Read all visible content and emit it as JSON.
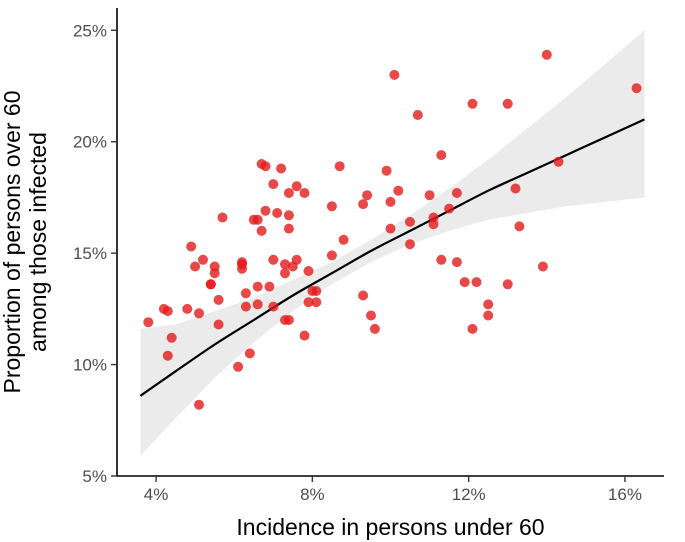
{
  "chart_data": {
    "type": "scatter",
    "title": "",
    "xlabel": "Incidence in persons under 60",
    "ylabel_lines": [
      "Proportion of persons over 60",
      "among those infected"
    ],
    "xlim": [
      3.0,
      17.0
    ],
    "ylim": [
      5.0,
      26.0
    ],
    "x_ticks": [
      4,
      8,
      12,
      16
    ],
    "x_tick_labels": [
      "4%",
      "8%",
      "12%",
      "16%"
    ],
    "y_ticks": [
      5,
      10,
      15,
      20,
      25
    ],
    "y_tick_labels": [
      "5%",
      "10%",
      "15%",
      "20%",
      "25%"
    ],
    "grid": false,
    "colors": {
      "points": "#e41a1c",
      "fit_line": "#000000",
      "confidence_band": "#ebebeb"
    },
    "series": [
      {
        "name": "observations",
        "points": [
          [
            3.8,
            11.9
          ],
          [
            4.2,
            12.5
          ],
          [
            4.3,
            12.4
          ],
          [
            4.3,
            10.4
          ],
          [
            4.4,
            11.2
          ],
          [
            4.8,
            12.5
          ],
          [
            4.9,
            15.3
          ],
          [
            5.0,
            14.4
          ],
          [
            5.1,
            12.3
          ],
          [
            5.1,
            8.2
          ],
          [
            5.2,
            14.7
          ],
          [
            5.4,
            13.6
          ],
          [
            5.4,
            13.6
          ],
          [
            5.5,
            14.1
          ],
          [
            5.5,
            14.4
          ],
          [
            5.6,
            11.8
          ],
          [
            5.6,
            12.9
          ],
          [
            5.7,
            16.6
          ],
          [
            6.1,
            9.9
          ],
          [
            6.2,
            14.6
          ],
          [
            6.2,
            14.5
          ],
          [
            6.2,
            14.3
          ],
          [
            6.3,
            12.6
          ],
          [
            6.3,
            13.2
          ],
          [
            6.4,
            10.5
          ],
          [
            6.5,
            16.5
          ],
          [
            6.6,
            13.5
          ],
          [
            6.6,
            16.5
          ],
          [
            6.6,
            12.7
          ],
          [
            6.7,
            16.0
          ],
          [
            6.7,
            19.0
          ],
          [
            6.8,
            18.9
          ],
          [
            6.8,
            16.9
          ],
          [
            6.9,
            13.5
          ],
          [
            7.0,
            14.7
          ],
          [
            7.0,
            18.1
          ],
          [
            7.0,
            12.6
          ],
          [
            7.1,
            16.8
          ],
          [
            7.2,
            18.8
          ],
          [
            7.3,
            14.1
          ],
          [
            7.3,
            14.5
          ],
          [
            7.3,
            12.0
          ],
          [
            7.4,
            16.7
          ],
          [
            7.4,
            16.1
          ],
          [
            7.4,
            17.7
          ],
          [
            7.4,
            12.0
          ],
          [
            7.5,
            14.4
          ],
          [
            7.6,
            14.7
          ],
          [
            7.6,
            18.0
          ],
          [
            7.8,
            17.7
          ],
          [
            7.8,
            11.3
          ],
          [
            7.9,
            12.8
          ],
          [
            7.9,
            14.2
          ],
          [
            8.0,
            13.3
          ],
          [
            8.1,
            13.3
          ],
          [
            8.1,
            12.8
          ],
          [
            8.5,
            17.1
          ],
          [
            8.5,
            14.9
          ],
          [
            8.7,
            18.9
          ],
          [
            8.8,
            15.6
          ],
          [
            9.3,
            13.1
          ],
          [
            9.3,
            17.2
          ],
          [
            9.4,
            17.6
          ],
          [
            9.5,
            12.2
          ],
          [
            9.6,
            11.6
          ],
          [
            9.9,
            18.7
          ],
          [
            10.0,
            17.3
          ],
          [
            10.0,
            16.1
          ],
          [
            10.1,
            23.0
          ],
          [
            10.2,
            17.8
          ],
          [
            10.5,
            16.4
          ],
          [
            10.5,
            15.4
          ],
          [
            10.7,
            21.2
          ],
          [
            11.0,
            17.6
          ],
          [
            11.1,
            16.6
          ],
          [
            11.1,
            16.3
          ],
          [
            11.3,
            14.7
          ],
          [
            11.3,
            19.4
          ],
          [
            11.5,
            17.0
          ],
          [
            11.7,
            14.6
          ],
          [
            11.7,
            17.7
          ],
          [
            11.9,
            13.7
          ],
          [
            12.1,
            11.6
          ],
          [
            12.1,
            21.7
          ],
          [
            12.2,
            13.7
          ],
          [
            12.5,
            12.2
          ],
          [
            12.5,
            12.7
          ],
          [
            13.0,
            21.7
          ],
          [
            13.0,
            13.6
          ],
          [
            13.2,
            17.9
          ],
          [
            13.3,
            16.2
          ],
          [
            13.9,
            14.4
          ],
          [
            14.0,
            23.9
          ],
          [
            14.3,
            19.1
          ],
          [
            16.3,
            22.4
          ]
        ]
      }
    ],
    "fit": {
      "x": [
        3.6,
        4.5,
        5.5,
        6.5,
        7.5,
        8.5,
        9.5,
        10.5,
        11.5,
        12.5,
        13.5,
        14.5,
        15.5,
        16.5
      ],
      "y": [
        8.6,
        9.7,
        10.9,
        12.0,
        13.1,
        14.1,
        15.1,
        16.0,
        16.9,
        17.8,
        18.6,
        19.4,
        20.2,
        21.0
      ],
      "lower": [
        5.9,
        7.6,
        9.4,
        11.0,
        12.4,
        13.6,
        14.6,
        15.4,
        16.0,
        16.5,
        16.8,
        17.1,
        17.3,
        17.5
      ],
      "upper": [
        11.6,
        11.8,
        12.4,
        13.0,
        13.8,
        14.6,
        15.6,
        16.7,
        17.9,
        19.2,
        20.6,
        22.0,
        23.5,
        25.0
      ]
    }
  }
}
